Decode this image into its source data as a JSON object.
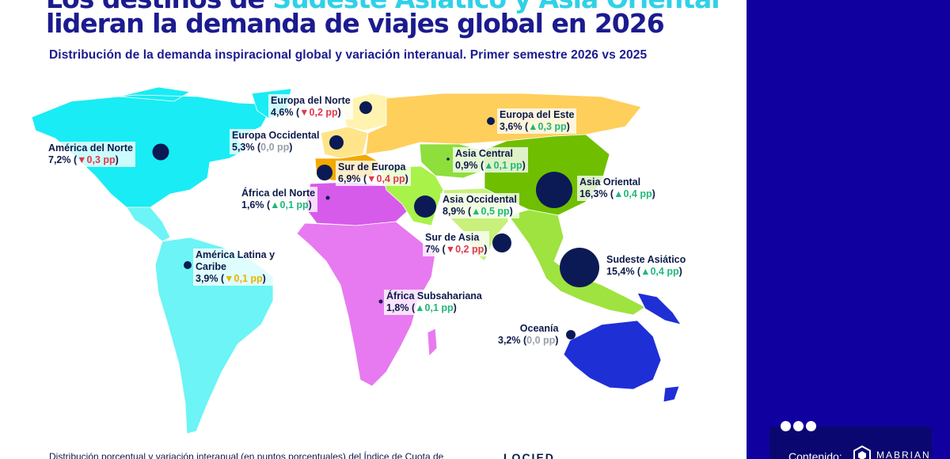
{
  "title": {
    "line1_pre": "Los destinos de ",
    "line1_accent": "Sudeste Asiático y Asia Oriental",
    "line2": "lideran la demanda de viajes global en 2026"
  },
  "subtitle": "Distribución de la demanda inspiracional global y variación interanual. Primer semestre 2026 vs 2025",
  "colors": {
    "title": "#1b1b8f",
    "accent": "#2fd1e8",
    "north_america": "#19ecf4",
    "latin_america": "#6cf4f6",
    "europe_north": "#fff3b0",
    "europe_west": "#ffe48a",
    "europe_east": "#ffcf5c",
    "europe_south": "#f2a900",
    "africa": "#e77af0",
    "north_africa": "#d65bea",
    "asia_central": "#8ede3c",
    "asia_west": "#a8f24a",
    "asia_south": "#c8f07a",
    "asia_east": "#6fbf00",
    "asia_southeast": "#9ee33f",
    "oceania": "#1f2fd6",
    "bubble": "#0b1a55",
    "down": "#e0384a",
    "up": "#1fb87a",
    "flat": "#9aa0a8",
    "warn": "#e8b400",
    "sidebar": "#1100a0"
  },
  "regions": [
    {
      "name": "América del Norte",
      "share": "7,2%",
      "dir": "▼",
      "change": "0,3 pp",
      "tone": "down",
      "share_value": 7.2
    },
    {
      "name": "Europa del Norte",
      "share": "4,6%",
      "dir": "▼",
      "change": "0,2 pp",
      "tone": "down",
      "share_value": 4.6
    },
    {
      "name": "Europa Occidental",
      "share": "5,3%",
      "dir": "",
      "change": "0,0 pp",
      "tone": "flat",
      "share_value": 5.3
    },
    {
      "name": "Europa del Este",
      "share": "3,6%",
      "dir": "▲",
      "change": "0,3 pp",
      "tone": "up",
      "share_value": 3.6
    },
    {
      "name": "Asia Central",
      "share": "0,9%",
      "dir": "▲",
      "change": "0,1 pp",
      "tone": "up",
      "share_value": 0.9
    },
    {
      "name": "Sur de Europa",
      "share": "6,9%",
      "dir": "▼",
      "change": "0,4 pp",
      "tone": "down",
      "share_value": 6.9
    },
    {
      "name": "África del Norte",
      "share": "1,6%",
      "dir": "▲",
      "change": "0,1 pp",
      "tone": "up",
      "share_value": 1.6
    },
    {
      "name": "Asia Occidental",
      "share": "8,9%",
      "dir": "▲",
      "change": "0,5 pp",
      "tone": "up",
      "share_value": 8.9
    },
    {
      "name": "Asia Oriental",
      "share": "16,3%",
      "dir": "▲",
      "change": "0,4 pp",
      "tone": "up",
      "share_value": 16.3
    },
    {
      "name": "Sur de Asia",
      "share": "7%",
      "dir": "▼",
      "change": "0,2 pp",
      "tone": "down",
      "share_value": 7.0
    },
    {
      "name": "América Latina y Caribe",
      "share": "3,9%",
      "dir": "▼",
      "change": "0,1 pp",
      "tone": "warn",
      "share_value": 3.9
    },
    {
      "name": "Sudeste Asiático",
      "share": "15,4%",
      "dir": "▲",
      "change": "0,4 pp",
      "tone": "up",
      "share_value": 15.4
    },
    {
      "name": "África Subsahariana",
      "share": "1,8%",
      "dir": "▲",
      "change": "0,1 pp",
      "tone": "up",
      "share_value": 1.8
    },
    {
      "name": "Oceanía",
      "share": "3,2%",
      "dir": "",
      "change": "0,0 pp",
      "tone": "flat",
      "share_value": 3.2
    }
  ],
  "footnote": "Distribución porcentual y variación interanual (en puntos porcentuales) del Índice de Cuota de",
  "brand_stub": "LOCIED",
  "panel": {
    "label": "Contenido:",
    "logo_text": "MABRIAN",
    "logo_icon": "mabrian-hex-icon"
  }
}
